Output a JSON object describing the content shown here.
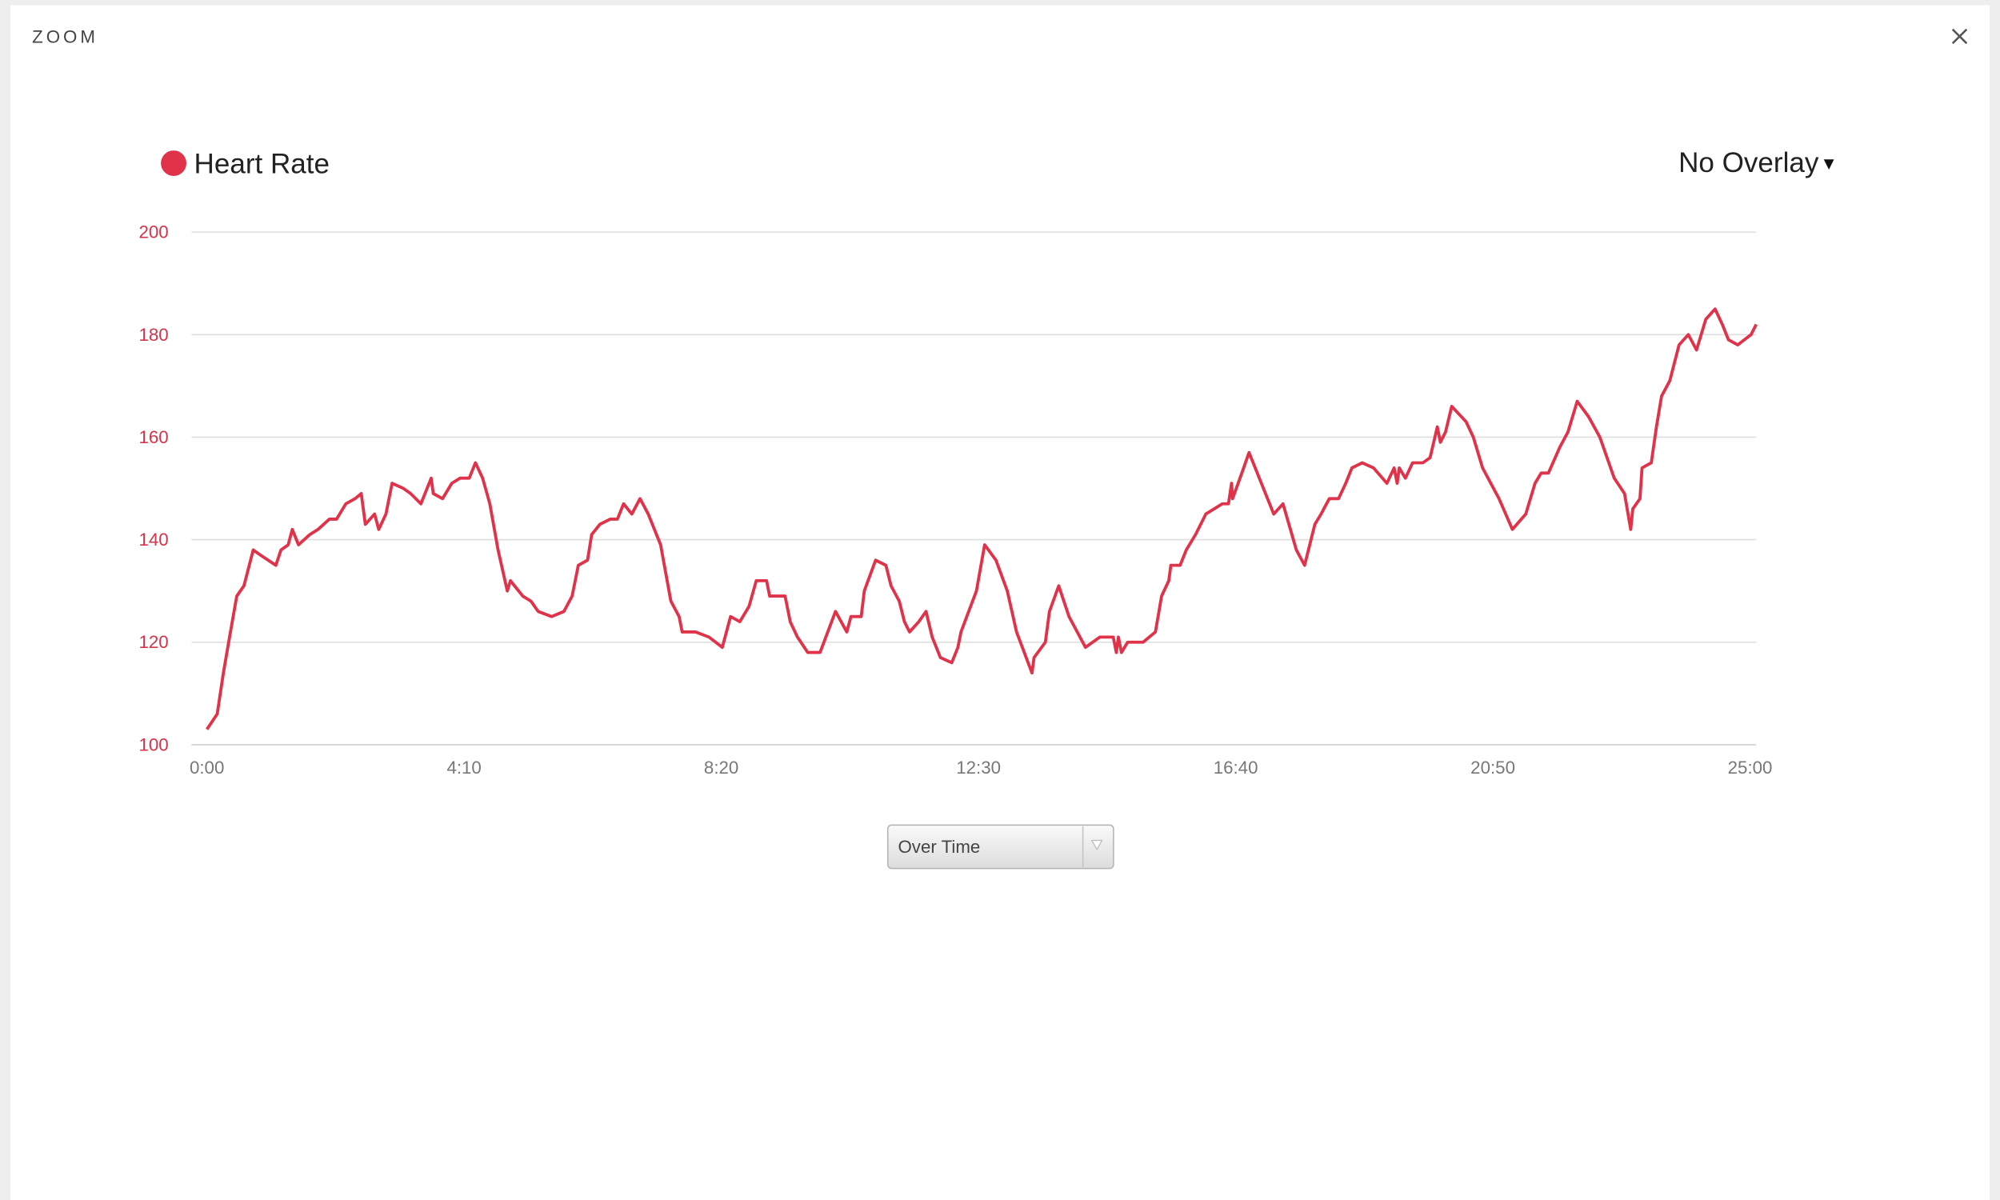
{
  "dialog": {
    "title": "ZOOM"
  },
  "overlay": "No Overlay",
  "view_select": "Over Time",
  "chart_data": {
    "type": "line",
    "x": [
      0,
      10,
      16,
      22,
      29,
      36,
      45,
      52,
      67,
      72,
      79,
      83,
      89,
      100,
      108,
      119,
      126,
      135,
      144,
      150,
      154,
      163,
      167,
      174,
      180,
      191,
      198,
      208,
      218,
      220,
      229,
      238,
      246,
      255,
      261,
      268,
      275,
      283,
      292,
      295,
      307,
      315,
      322,
      335,
      347,
      355,
      361,
      370,
      374,
      382,
      392,
      399,
      405,
      413,
      421,
      429,
      441,
      451,
      459,
      462,
      475,
      488,
      501,
      509,
      518,
      527,
      534,
      544,
      547,
      562,
      567,
      574,
      584,
      596,
      611,
      622,
      626,
      636,
      639,
      650,
      660,
      665,
      673,
      678,
      683,
      692,
      699,
      705,
      713,
      724,
      730,
      733,
      748,
      756,
      767,
      778,
      787,
      802,
      804,
      815,
      819,
      828,
      838,
      854,
      868,
      881,
      884,
      886,
      889,
      895,
      910,
      922,
      928,
      935,
      937,
      946,
      952,
      961,
      971,
      987,
      993,
      996,
      997,
      1006,
      1013,
      1021,
      1037,
      1046,
      1059,
      1067,
      1077,
      1083,
      1091,
      1100,
      1107,
      1113,
      1123,
      1134,
      1147,
      1154,
      1157,
      1159,
      1165,
      1172,
      1182,
      1189,
      1196,
      1199,
      1204,
      1210,
      1224,
      1231,
      1240,
      1256,
      1269,
      1282,
      1291,
      1297,
      1304,
      1315,
      1323,
      1332,
      1343,
      1354,
      1361,
      1368,
      1378,
      1384,
      1386,
      1393,
      1395,
      1404,
      1409,
      1414,
      1422,
      1431,
      1440,
      1448,
      1457,
      1466,
      1473,
      1479,
      1488,
      1501,
      1506
    ],
    "series": [
      {
        "name": "Heart Rate",
        "color": "#e0334a",
        "values": [
          103,
          106,
          114,
          121,
          129,
          131,
          138,
          137,
          135,
          138,
          139,
          142,
          139,
          141,
          142,
          144,
          144,
          147,
          148,
          149,
          143,
          145,
          142,
          145,
          151,
          150,
          149,
          147,
          152,
          149,
          148,
          151,
          152,
          152,
          155,
          152,
          147,
          138,
          130,
          132,
          129,
          128,
          126,
          125,
          126,
          129,
          135,
          136,
          141,
          143,
          144,
          144,
          147,
          145,
          148,
          145,
          139,
          128,
          125,
          122,
          122,
          121,
          119,
          125,
          124,
          127,
          132,
          132,
          129,
          129,
          124,
          121,
          118,
          118,
          126,
          122,
          125,
          125,
          130,
          136,
          135,
          131,
          128,
          124,
          122,
          124,
          126,
          121,
          117,
          116,
          119,
          122,
          130,
          139,
          136,
          130,
          122,
          114,
          117,
          120,
          126,
          131,
          125,
          119,
          121,
          121,
          118,
          121,
          118,
          120,
          120,
          122,
          129,
          132,
          135,
          135,
          138,
          141,
          145,
          147,
          147,
          151,
          148,
          153,
          157,
          153,
          145,
          147,
          138,
          135,
          143,
          145,
          148,
          148,
          151,
          154,
          155,
          154,
          151,
          154,
          151,
          154,
          152,
          155,
          155,
          156,
          162,
          159,
          161,
          166,
          163,
          160,
          154,
          148,
          142,
          145,
          151,
          153,
          153,
          158,
          161,
          167,
          164,
          160,
          156,
          152,
          149,
          142,
          146,
          148,
          154,
          155,
          162,
          168,
          171,
          178,
          180,
          177,
          183,
          185,
          182,
          179,
          178,
          180,
          182
        ]
      }
    ],
    "xlim": [
      -15,
      1506
    ],
    "xticks": [
      {
        "value": 0,
        "label": "0:00"
      },
      {
        "value": 250,
        "label": "4:10"
      },
      {
        "value": 500,
        "label": "8:20"
      },
      {
        "value": 750,
        "label": "12:30"
      },
      {
        "value": 1000,
        "label": "16:40"
      },
      {
        "value": 1250,
        "label": "20:50"
      },
      {
        "value": 1500,
        "label": "25:00"
      }
    ],
    "ylim": [
      100,
      200
    ],
    "yticks": [
      100,
      120,
      140,
      160,
      180,
      200
    ],
    "grid": true
  }
}
